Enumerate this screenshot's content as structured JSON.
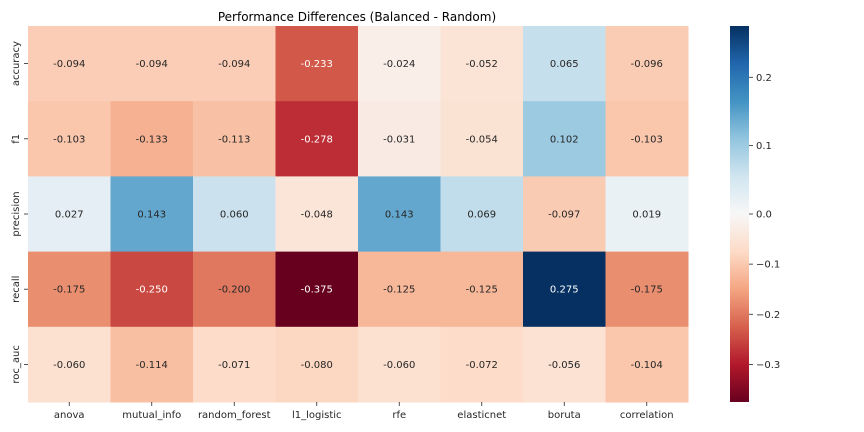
{
  "chart_data": {
    "type": "heatmap",
    "title": "Performance Differences (Balanced - Random)",
    "x_categories": [
      "anova",
      "mutual_info",
      "random_forest",
      "l1_logistic",
      "rfe",
      "elasticnet",
      "boruta",
      "correlation"
    ],
    "y_categories": [
      "accuracy",
      "f1",
      "precision",
      "recall",
      "roc_auc"
    ],
    "values": [
      [
        -0.094,
        -0.094,
        -0.094,
        -0.233,
        -0.024,
        -0.052,
        0.065,
        -0.096
      ],
      [
        -0.103,
        -0.133,
        -0.113,
        -0.278,
        -0.031,
        -0.054,
        0.102,
        -0.103
      ],
      [
        0.027,
        0.143,
        0.06,
        -0.048,
        0.143,
        0.069,
        -0.097,
        0.019
      ],
      [
        -0.175,
        -0.25,
        -0.2,
        -0.375,
        -0.125,
        -0.125,
        0.275,
        -0.175
      ],
      [
        -0.06,
        -0.114,
        -0.071,
        -0.08,
        -0.06,
        -0.072,
        -0.056,
        -0.104
      ]
    ],
    "value_format": "3 decimals",
    "colormap": "RdBu",
    "colormap_center": 0.0,
    "color_range": [
      -0.375,
      0.275
    ],
    "colorbar_ticks": [
      "0.2",
      "0.1",
      "0.0",
      "−0.1",
      "−0.2",
      "−0.3"
    ],
    "colorbar_tick_values": [
      0.2,
      0.1,
      0.0,
      -0.1,
      -0.2,
      -0.3
    ],
    "grid": false,
    "legend": "colorbar-right"
  }
}
